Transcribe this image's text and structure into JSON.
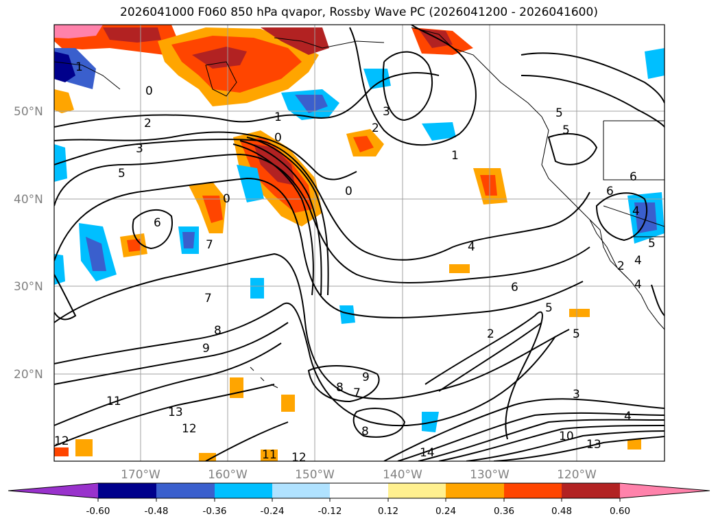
{
  "title": "2026041000 F060 850 hPa qvapor, Rossby Wave PC (2026041200 - 2026041600)",
  "map": {
    "lat_labels": [
      "50°N",
      "40°N",
      "30°N",
      "20°N"
    ],
    "lon_labels": [
      "170°W",
      "160°W",
      "150°W",
      "140°W",
      "130°W",
      "120°W"
    ]
  },
  "colorbar": {
    "colors": [
      "#9932cc",
      "#00008b",
      "#3a5fcd",
      "#00bfff",
      "#b0e2ff",
      "#ffffff",
      "#fff08f",
      "#ffa500",
      "#ff4500",
      "#b22222",
      "#ff82ab"
    ],
    "tick_labels": [
      "-0.60",
      "-0.48",
      "-0.36",
      "-0.24",
      "-0.12",
      "0.12",
      "0.24",
      "0.36",
      "0.48",
      "0.60"
    ]
  },
  "contour_labels": [
    "1",
    "0",
    "2",
    "3",
    "5",
    "1",
    "0",
    "3",
    "2",
    "1",
    "0",
    "5",
    "6",
    "4",
    "6",
    "7",
    "7",
    "8",
    "9",
    "11",
    "13",
    "12",
    "12",
    "11",
    "12",
    "14",
    "8",
    "9",
    "7",
    "8",
    "4",
    "6",
    "5",
    "2",
    "5",
    "3",
    "4",
    "10",
    "13",
    "2",
    "6",
    "4",
    "5",
    "4",
    "5",
    "0"
  ]
}
